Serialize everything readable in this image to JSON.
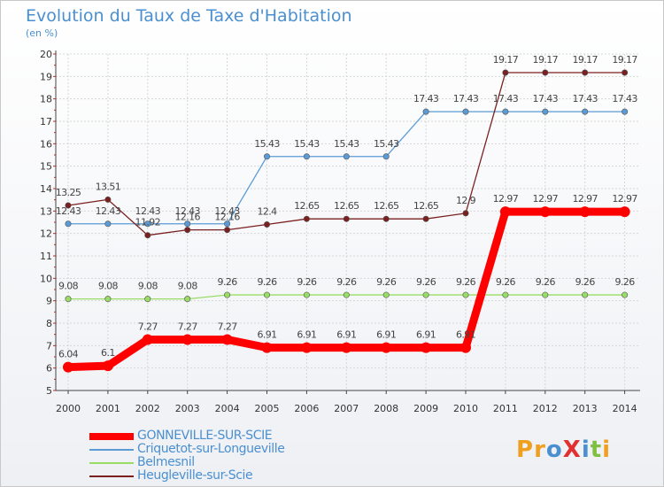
{
  "chart_data": {
    "type": "line",
    "title": "Evolution du Taux de Taxe d'Habitation",
    "ylabel": "(en %)",
    "xlabel": "",
    "ylim": [
      5,
      20
    ],
    "yticks": [
      "5",
      "6",
      "7",
      "8",
      "9",
      "10",
      "11",
      "12",
      "13",
      "14",
      "15",
      "16",
      "17",
      "18",
      "19",
      "20"
    ],
    "categories": [
      "2000",
      "2001",
      "2002",
      "2003",
      "2004",
      "2005",
      "2006",
      "2007",
      "2008",
      "2009",
      "2010",
      "2011",
      "2012",
      "2013",
      "2014"
    ],
    "series": [
      {
        "name": "GONNEVILLE-SUR-SCIE",
        "color": "#ff0000",
        "values": [
          6.04,
          6.1,
          7.27,
          7.27,
          7.27,
          6.91,
          6.91,
          6.91,
          6.91,
          6.91,
          6.91,
          12.97,
          12.97,
          12.97,
          12.97
        ],
        "labels": [
          "6.04",
          "6.1",
          "7.27",
          "7.27",
          "7.27",
          "6.91",
          "6.91",
          "6.91",
          "6.91",
          "6.91",
          "6.91",
          "12.97",
          "12.97",
          "12.97",
          "12.97"
        ]
      },
      {
        "name": "Criquetot-sur-Longueville",
        "color": "#5b9bd5",
        "values": [
          12.43,
          12.43,
          12.43,
          12.43,
          12.43,
          15.43,
          15.43,
          15.43,
          15.43,
          17.43,
          17.43,
          17.43,
          17.43,
          17.43,
          17.43
        ],
        "labels": [
          "12.43",
          "12.43",
          "12.43",
          "12.43",
          "12.43",
          "15.43",
          "15.43",
          "15.43",
          "15.43",
          "17.43",
          "17.43",
          "17.43",
          "17.43",
          "17.43",
          "17.43"
        ]
      },
      {
        "name": "Belmesnil",
        "color": "#99dd66",
        "values": [
          9.08,
          9.08,
          9.08,
          9.08,
          9.26,
          9.26,
          9.26,
          9.26,
          9.26,
          9.26,
          9.26,
          9.26,
          9.26,
          9.26,
          9.26
        ],
        "labels": [
          "9.08",
          "9.08",
          "9.08",
          "9.08",
          "9.26",
          "9.26",
          "9.26",
          "9.26",
          "9.26",
          "9.26",
          "9.26",
          "9.26",
          "9.26",
          "9.26",
          "9.26"
        ]
      },
      {
        "name": "Heugleville-sur-Scie",
        "color": "#7b2020",
        "values": [
          13.25,
          13.51,
          11.92,
          12.16,
          12.16,
          12.4,
          12.65,
          12.65,
          12.65,
          12.65,
          12.9,
          19.17,
          19.17,
          19.17,
          19.17
        ],
        "labels": [
          "13.25",
          "13.51",
          "11.92",
          "12.16",
          "12.16",
          "12.4",
          "12.65",
          "12.65",
          "12.65",
          "12.65",
          "12.9",
          "19.17",
          "19.17",
          "19.17",
          "19.17"
        ]
      }
    ]
  },
  "logo": {
    "text": "ProXiti",
    "letters": [
      {
        "ch": "P",
        "color": "#f0a020"
      },
      {
        "ch": "r",
        "color": "#f0a020"
      },
      {
        "ch": "o",
        "color": "#4a8fd0"
      },
      {
        "ch": "X",
        "color": "#e03030"
      },
      {
        "ch": "i",
        "color": "#4a8fd0"
      },
      {
        "ch": "t",
        "color": "#80c040"
      },
      {
        "ch": "i",
        "color": "#f0a020"
      }
    ]
  }
}
